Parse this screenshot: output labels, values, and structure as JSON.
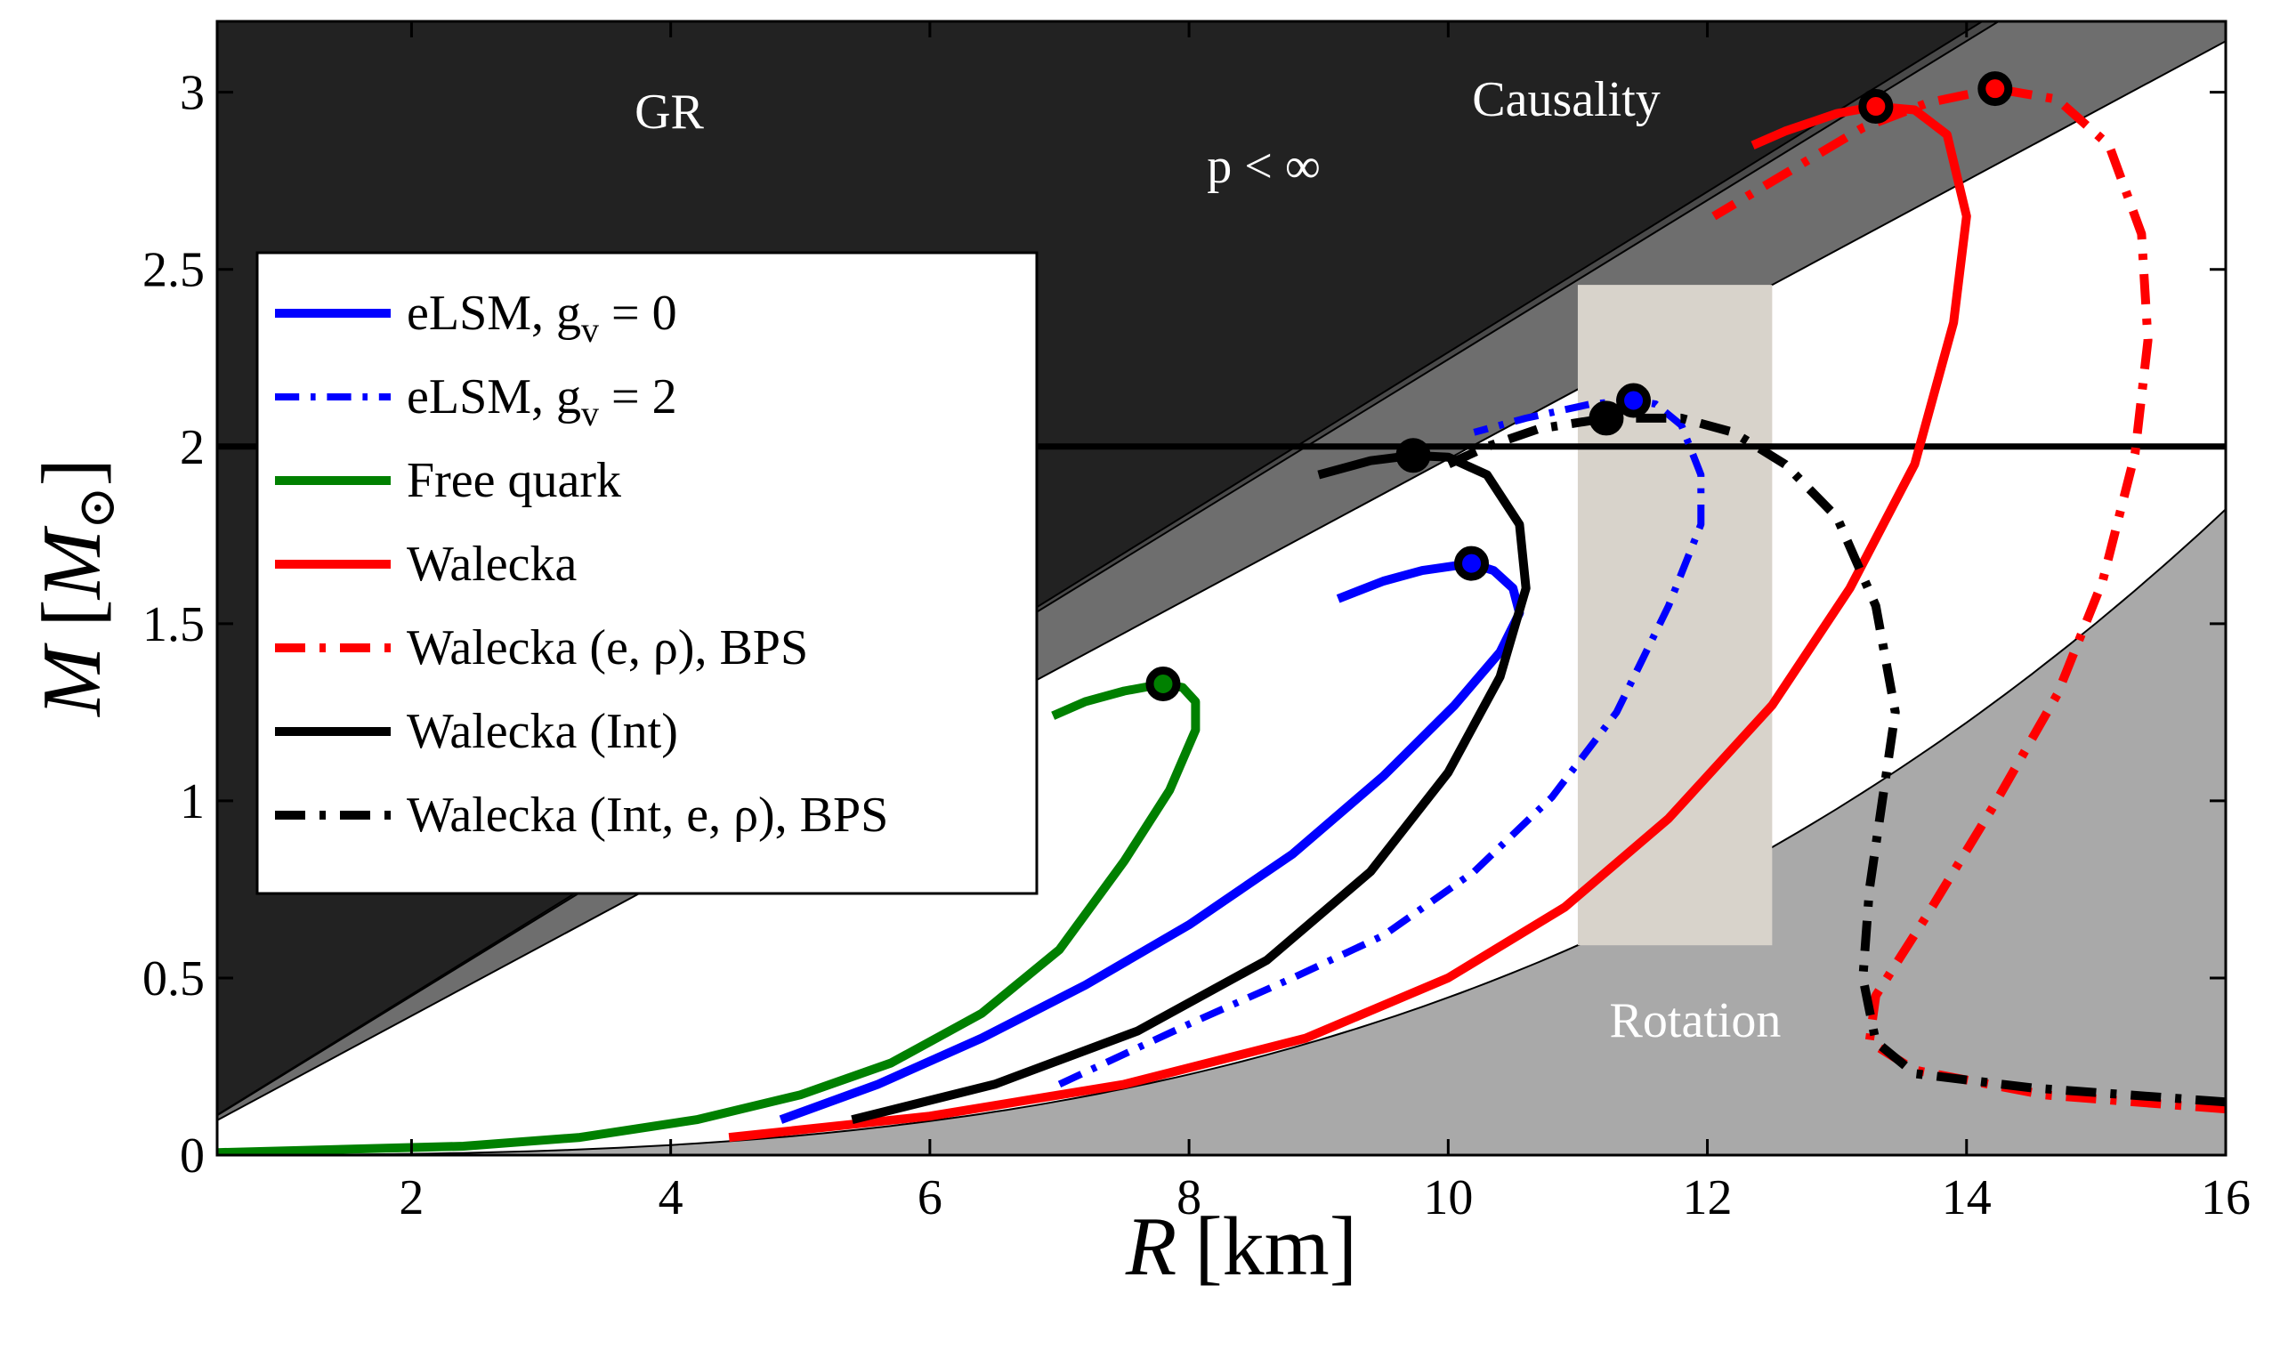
{
  "chart_data": {
    "type": "line",
    "title": "",
    "xlabel": {
      "symbol": "R",
      "unit": "[km]"
    },
    "ylabel": {
      "symbol": "M",
      "unit_open": "[",
      "unit_symbol": "M",
      "unit_sub": "⊙",
      "unit_close": "]"
    },
    "xlim": [
      0.5,
      16
    ],
    "ylim": [
      0,
      3.2
    ],
    "xticks": [
      2,
      4,
      6,
      8,
      10,
      12,
      14,
      16
    ],
    "xtick_labels": [
      "2",
      "4",
      "6",
      "8",
      "10",
      "12",
      "14",
      "16"
    ],
    "yticks": [
      0,
      0.5,
      1,
      1.5,
      2,
      2.5,
      3
    ],
    "ytick_labels": [
      "0",
      "0.5",
      "1",
      "1.5",
      "2",
      "2.5",
      "3"
    ],
    "grid": false,
    "legend_position": "upper-left",
    "colors": {
      "blue": "#0000ff",
      "green": "#008000",
      "red": "#ff0000",
      "black": "#000000"
    },
    "regions": [
      {
        "name": "GR",
        "label": "GR",
        "fill": "#222222",
        "boundary": "M = 0.2266 R"
      },
      {
        "name": "pressure",
        "label": "p < ∞",
        "fill": "#4a4a4a",
        "boundary": "M = 0.2246 R"
      },
      {
        "name": "causality",
        "label": "Causality",
        "fill": "#6e6e6e",
        "boundary": "M = 0.1965 R"
      },
      {
        "name": "rotation",
        "label": "Rotation",
        "fill": "#a9a9a9",
        "boundary": "M = 0.000445 R^3"
      },
      {
        "name": "radius-band",
        "label": "",
        "fill": "#d8d3cb",
        "xrange": [
          11,
          12.5
        ]
      }
    ],
    "hline": {
      "y": 2,
      "color": "#000000"
    },
    "series": [
      {
        "name": "eLSM, g_v = 0",
        "label_main": "eLSM, g",
        "label_sub": "v",
        "label_tail": " = 0",
        "color": "#0000ff",
        "style": "solid",
        "width": 10,
        "points": [
          [
            4.85,
            0.1
          ],
          [
            5.6,
            0.2
          ],
          [
            6.4,
            0.33
          ],
          [
            7.2,
            0.48
          ],
          [
            8.0,
            0.65
          ],
          [
            8.8,
            0.85
          ],
          [
            9.5,
            1.07
          ],
          [
            10.05,
            1.27
          ],
          [
            10.4,
            1.42
          ],
          [
            10.55,
            1.53
          ],
          [
            10.5,
            1.6
          ],
          [
            10.35,
            1.65
          ],
          [
            10.18,
            1.67
          ],
          [
            9.8,
            1.65
          ],
          [
            9.5,
            1.62
          ],
          [
            9.15,
            1.57
          ]
        ],
        "max_point": [
          10.18,
          1.67
        ]
      },
      {
        "name": "eLSM, g_v = 2",
        "label_main": "eLSM, g",
        "label_sub": "v",
        "label_tail": " = 2",
        "color": "#0000ff",
        "style": "dashdot",
        "width": 8,
        "points": [
          [
            7.0,
            0.2
          ],
          [
            8.0,
            0.37
          ],
          [
            8.8,
            0.5
          ],
          [
            9.5,
            0.62
          ],
          [
            10.2,
            0.8
          ],
          [
            10.8,
            1.01
          ],
          [
            11.3,
            1.25
          ],
          [
            11.7,
            1.55
          ],
          [
            11.95,
            1.78
          ],
          [
            11.95,
            1.92
          ],
          [
            11.8,
            2.06
          ],
          [
            11.6,
            2.12
          ],
          [
            11.43,
            2.13
          ],
          [
            11.1,
            2.12
          ],
          [
            10.6,
            2.08
          ],
          [
            10.2,
            2.04
          ]
        ],
        "max_point": [
          11.43,
          2.13
        ]
      },
      {
        "name": "Free quark",
        "label_main": "Free quark",
        "label_sub": "",
        "label_tail": "",
        "color": "#008000",
        "style": "solid",
        "width": 10,
        "points": [
          [
            0.5,
            0.007
          ],
          [
            2.4,
            0.025
          ],
          [
            3.3,
            0.05
          ],
          [
            4.2,
            0.1
          ],
          [
            5.0,
            0.17
          ],
          [
            5.7,
            0.26
          ],
          [
            6.4,
            0.4
          ],
          [
            7.0,
            0.58
          ],
          [
            7.5,
            0.83
          ],
          [
            7.85,
            1.03
          ],
          [
            8.05,
            1.2
          ],
          [
            8.05,
            1.28
          ],
          [
            7.95,
            1.32
          ],
          [
            7.8,
            1.33
          ],
          [
            7.5,
            1.31
          ],
          [
            7.2,
            1.28
          ],
          [
            6.95,
            1.24
          ]
        ],
        "max_point": [
          7.8,
          1.33
        ]
      },
      {
        "name": "Walecka",
        "label_main": "Walecka",
        "label_sub": "",
        "label_tail": "",
        "color": "#ff0000",
        "style": "solid",
        "width": 10,
        "points": [
          [
            4.45,
            0.05
          ],
          [
            6.0,
            0.11
          ],
          [
            7.5,
            0.2
          ],
          [
            8.9,
            0.33
          ],
          [
            10.0,
            0.5
          ],
          [
            10.9,
            0.7
          ],
          [
            11.7,
            0.95
          ],
          [
            12.5,
            1.27
          ],
          [
            13.1,
            1.6
          ],
          [
            13.6,
            1.95
          ],
          [
            13.9,
            2.35
          ],
          [
            14.0,
            2.65
          ],
          [
            13.85,
            2.88
          ],
          [
            13.6,
            2.95
          ],
          [
            13.3,
            2.96
          ],
          [
            13.0,
            2.94
          ],
          [
            12.6,
            2.89
          ],
          [
            12.35,
            2.85
          ]
        ],
        "max_point": [
          13.3,
          2.96
        ]
      },
      {
        "name": "Walecka (e, ρ), BPS",
        "label_main": "Walecka (e, ρ), BPS",
        "label_sub": "",
        "label_tail": "",
        "color": "#ff0000",
        "style": "dashdot",
        "width": 10,
        "points": [
          [
            16.0,
            0.13
          ],
          [
            14.6,
            0.17
          ],
          [
            13.6,
            0.24
          ],
          [
            13.25,
            0.32
          ],
          [
            13.3,
            0.45
          ],
          [
            13.7,
            0.68
          ],
          [
            14.2,
            0.98
          ],
          [
            14.7,
            1.3
          ],
          [
            15.05,
            1.62
          ],
          [
            15.3,
            1.98
          ],
          [
            15.4,
            2.3
          ],
          [
            15.35,
            2.6
          ],
          [
            15.1,
            2.85
          ],
          [
            14.7,
            2.98
          ],
          [
            14.22,
            3.01
          ],
          [
            13.7,
            2.97
          ],
          [
            13.2,
            2.9
          ],
          [
            12.6,
            2.77
          ],
          [
            12.05,
            2.65
          ]
        ],
        "max_point": [
          14.22,
          3.01
        ]
      },
      {
        "name": "Walecka (Int)",
        "label_main": "Walecka (Int)",
        "label_sub": "",
        "label_tail": "",
        "color": "#000000",
        "style": "solid",
        "width": 10,
        "points": [
          [
            5.4,
            0.1
          ],
          [
            6.5,
            0.2
          ],
          [
            7.6,
            0.35
          ],
          [
            8.6,
            0.55
          ],
          [
            9.4,
            0.8
          ],
          [
            10.0,
            1.08
          ],
          [
            10.4,
            1.35
          ],
          [
            10.6,
            1.6
          ],
          [
            10.55,
            1.78
          ],
          [
            10.3,
            1.92
          ],
          [
            10.0,
            1.97
          ],
          [
            9.73,
            1.975
          ],
          [
            9.4,
            1.96
          ],
          [
            9.0,
            1.92
          ]
        ],
        "max_point": [
          9.73,
          1.975
        ]
      },
      {
        "name": "Walecka (Int, e, ρ), BPS",
        "label_main": "Walecka (Int, e, ρ), BPS",
        "label_sub": "",
        "label_tail": "",
        "color": "#000000",
        "style": "dashdot",
        "width": 10,
        "points": [
          [
            16.0,
            0.15
          ],
          [
            14.5,
            0.19
          ],
          [
            13.6,
            0.23
          ],
          [
            13.3,
            0.32
          ],
          [
            13.2,
            0.5
          ],
          [
            13.25,
            0.75
          ],
          [
            13.35,
            1.0
          ],
          [
            13.45,
            1.25
          ],
          [
            13.3,
            1.55
          ],
          [
            13.0,
            1.8
          ],
          [
            12.6,
            1.95
          ],
          [
            12.2,
            2.04
          ],
          [
            11.8,
            2.08
          ],
          [
            11.22,
            2.08
          ],
          [
            10.7,
            2.05
          ],
          [
            10.3,
            2.0
          ],
          [
            10.0,
            1.95
          ]
        ],
        "max_point": [
          11.22,
          2.08
        ]
      }
    ]
  }
}
